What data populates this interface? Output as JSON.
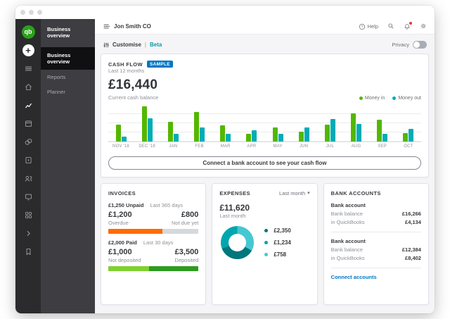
{
  "brand": {
    "logo_text": "qb",
    "green": "#2ca01c"
  },
  "window": {
    "controls": [
      "close",
      "minimize",
      "maximize"
    ]
  },
  "sidebar_rail": {
    "icons": [
      {
        "name": "quickbooks-logo",
        "type": "logo",
        "active": false
      },
      {
        "name": "add-new-button",
        "type": "plus",
        "active": false
      },
      {
        "name": "menu-icon",
        "type": "hamburger",
        "active": false
      },
      {
        "name": "home-icon",
        "type": "home",
        "active": false
      },
      {
        "name": "business-overview-icon",
        "type": "chart",
        "active": true
      },
      {
        "name": "calendar-icon",
        "type": "calendar",
        "active": false
      },
      {
        "name": "money-icon",
        "type": "coins",
        "active": false
      },
      {
        "name": "invoices-icon",
        "type": "receipt",
        "active": false
      },
      {
        "name": "customers-icon",
        "type": "people",
        "active": false
      },
      {
        "name": "banking-icon",
        "type": "monitor",
        "active": false
      },
      {
        "name": "apps-icon",
        "type": "grid",
        "active": false
      },
      {
        "name": "expand-icon",
        "type": "chevron",
        "active": false
      },
      {
        "name": "bookmarks-icon",
        "type": "bookmark",
        "active": false
      }
    ]
  },
  "sidenav": {
    "title": "Business overview",
    "items": [
      {
        "label": "Business overview",
        "active": true
      },
      {
        "label": "Reports",
        "active": false
      },
      {
        "label": "Planner",
        "active": false
      }
    ]
  },
  "topbar": {
    "company": "Jon Smith CO",
    "help_label": "Help"
  },
  "toolbar": {
    "customise_label": "Customise",
    "separator": "|",
    "beta_label": "Beta",
    "beta_color": "#0d99a6",
    "privacy_label": "Privacy"
  },
  "cashflow": {
    "title": "CASH FLOW",
    "badge": "SAMPLE",
    "badge_color": "#0077c5",
    "subtitle": "Last 12 months",
    "balance": "£16,440",
    "balance_caption": "Current cash balance",
    "legend": [
      {
        "label": "Money in",
        "color": "#53b700"
      },
      {
        "label": "Money out",
        "color": "#00acb5"
      }
    ],
    "connect_button": "Connect a bank account to see your cash flow",
    "chart_data": {
      "type": "bar",
      "title": "CASH FLOW - Last 12 months",
      "categories": [
        "NOV '18",
        "DEC '18",
        "JAN",
        "FEB",
        "MAR",
        "APR",
        "MAY",
        "JUN",
        "JUL",
        "AUG",
        "SEP",
        "OCT"
      ],
      "series": [
        {
          "name": "Money in",
          "color": "#53b700",
          "values": [
            49,
            100,
            57,
            84,
            47,
            22,
            41,
            29,
            49,
            80,
            63,
            24
          ]
        },
        {
          "name": "Money out",
          "color": "#00acb5",
          "values": [
            14,
            67,
            22,
            41,
            22,
            33,
            22,
            41,
            65,
            51,
            22,
            37
          ]
        }
      ],
      "ylim": [
        0,
        100
      ],
      "note": "no y-axis labels shown; values are relative bar heights (percent of tallest bar)",
      "grid": "horizontal",
      "legend_position": "top-right"
    }
  },
  "invoices": {
    "title": "INVOICES",
    "sections": [
      {
        "amount_label": "£1,250 Unpaid",
        "period": "Last 365 days",
        "left_value": "£1,200",
        "right_value": "£800",
        "left_caption": "Overdue",
        "right_caption": "Not due yet",
        "bar": [
          {
            "color": "#ff6b00",
            "percent": 60
          },
          {
            "color": "#d5d8dc",
            "percent": 40
          }
        ]
      },
      {
        "amount_label": "£2,000 Paid",
        "period": "Last 30 days",
        "left_value": "£1,000",
        "right_value": "£3,500",
        "left_caption": "Not deposited",
        "right_caption": "Deposited",
        "bar": [
          {
            "color": "#7fd12f",
            "percent": 45
          },
          {
            "color": "#2d9c1f",
            "percent": 55
          }
        ]
      }
    ]
  },
  "expenses": {
    "title": "EXPENSES",
    "filter_label": "Last month",
    "total": "£11,620",
    "caption": "Last month",
    "chart_data": {
      "type": "pie",
      "donut": true,
      "segments": [
        {
          "value": "£758",
          "color": "#45c8d1",
          "arc_percent": 33
        },
        {
          "value": "£2,350",
          "color": "#00767d",
          "arc_percent": 36
        },
        {
          "value": "£1,234",
          "color": "#00a6ae",
          "arc_percent": 31
        }
      ],
      "legend_order": [
        "£2,350",
        "£1,234",
        "£758"
      ],
      "legend": [
        {
          "value": "£2,350",
          "color": "#00767d"
        },
        {
          "value": "£1,234",
          "color": "#00a6ae"
        },
        {
          "value": "£758",
          "color": "#45c8d1"
        }
      ]
    }
  },
  "bank_accounts": {
    "title": "BANK ACCOUNTS",
    "accounts": [
      {
        "name": "Bank account",
        "rows": [
          {
            "label": "Bank balance",
            "value": "£16,266"
          },
          {
            "label": "in QuickBooks",
            "value": "£4,134"
          }
        ]
      },
      {
        "name": "Bank account",
        "rows": [
          {
            "label": "Bank balance",
            "value": "£12,384"
          },
          {
            "label": "in QuickBooks",
            "value": "£8,402"
          }
        ]
      }
    ],
    "link": "Connect accounts",
    "link_color": "#0077c5"
  }
}
